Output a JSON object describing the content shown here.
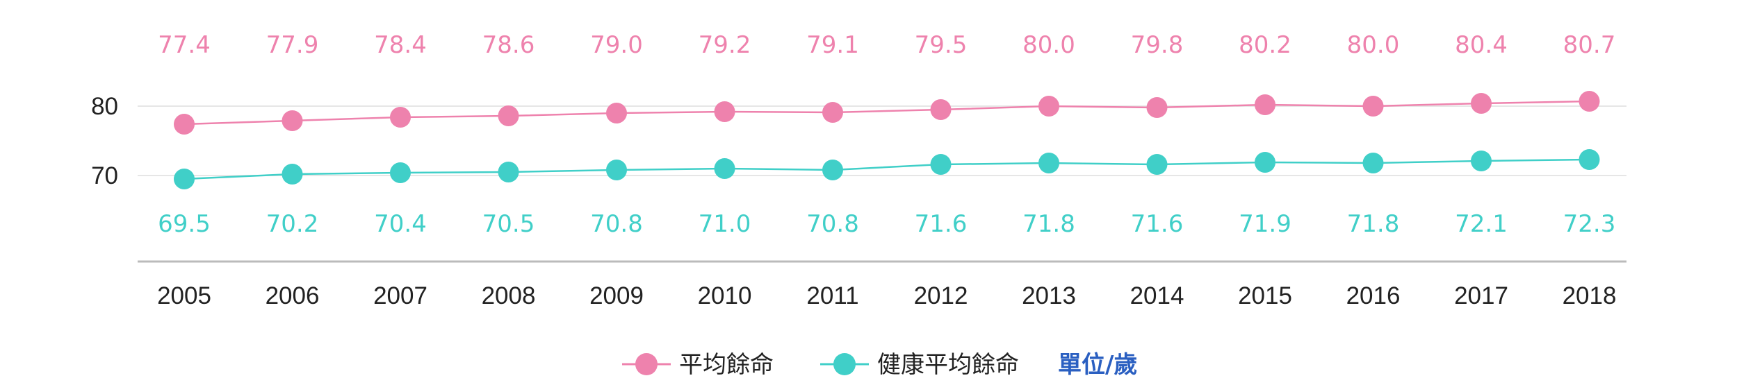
{
  "chart_data": {
    "type": "line",
    "x": [
      "2005",
      "2006",
      "2007",
      "2008",
      "2009",
      "2010",
      "2011",
      "2012",
      "2013",
      "2014",
      "2015",
      "2016",
      "2017",
      "2018"
    ],
    "series": [
      {
        "name": "平均餘命",
        "color": "#ee82ad",
        "values": [
          77.4,
          77.9,
          78.4,
          78.6,
          79.0,
          79.2,
          79.1,
          79.5,
          80.0,
          79.8,
          80.2,
          80.0,
          80.4,
          80.7
        ],
        "value_labels": [
          "77.4",
          "77.9",
          "78.4",
          "78.6",
          "79.0",
          "79.2",
          "79.1",
          "79.5",
          "80.0",
          "79.8",
          "80.2",
          "80.0",
          "80.4",
          "80.7"
        ]
      },
      {
        "name": "健康平均餘命",
        "color": "#40cfc8",
        "values": [
          69.5,
          70.2,
          70.4,
          70.5,
          70.8,
          71.0,
          70.8,
          71.6,
          71.8,
          71.6,
          71.9,
          71.8,
          72.1,
          72.3
        ],
        "value_labels": [
          "69.5",
          "70.2",
          "70.4",
          "70.5",
          "70.8",
          "71.0",
          "70.8",
          "71.6",
          "71.8",
          "71.6",
          "71.9",
          "71.8",
          "72.1",
          "72.3"
        ]
      }
    ],
    "y_ticks": [
      "80",
      "70"
    ],
    "ylim": [
      60,
      85
    ],
    "grid": true,
    "legend": "bottom-center",
    "unit_note": "單位/歲",
    "unit_color": "#2a5fc1"
  }
}
